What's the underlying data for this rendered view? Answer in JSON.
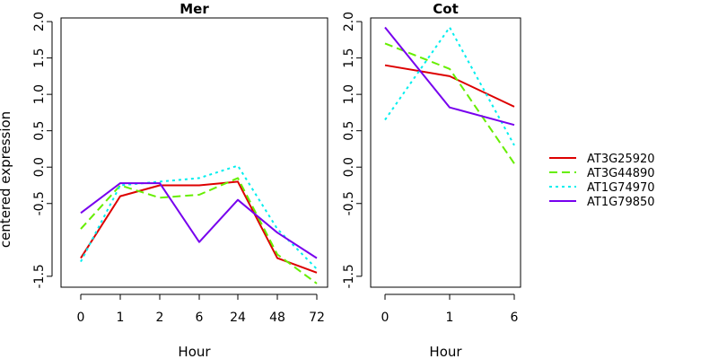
{
  "chart_data": {
    "type": "line",
    "ylabel": "centered expression",
    "ylim": [
      -1.65,
      2.05
    ],
    "yticks": [
      -1.5,
      -0.5,
      0.0,
      0.5,
      1.0,
      1.5,
      2.0
    ],
    "ytick_labels": [
      "-1.5",
      "-0.5",
      "0.0",
      "0.5",
      "1.0",
      "1.5",
      "2.0"
    ],
    "legend_position": "right",
    "panels": [
      {
        "title": "Mer",
        "xlabel": "Hour",
        "categories": [
          "0",
          "1",
          "2",
          "6",
          "24",
          "48",
          "72"
        ],
        "series": [
          {
            "name": "AT3G25920",
            "values": [
              -1.25,
              -0.4,
              -0.25,
              -0.25,
              -0.2,
              -1.25,
              -1.45
            ]
          },
          {
            "name": "AT3G44890",
            "values": [
              -0.85,
              -0.25,
              -0.42,
              -0.38,
              -0.15,
              -1.2,
              -1.6
            ]
          },
          {
            "name": "AT1G74970",
            "values": [
              -1.3,
              -0.25,
              -0.2,
              -0.15,
              0.02,
              -0.85,
              -1.4
            ]
          },
          {
            "name": "AT1G79850",
            "values": [
              -0.63,
              -0.22,
              -0.22,
              -1.03,
              -0.45,
              -0.9,
              -1.25
            ]
          }
        ]
      },
      {
        "title": "Cot",
        "xlabel": "Hour",
        "categories": [
          "0",
          "1",
          "6"
        ],
        "series": [
          {
            "name": "AT3G25920",
            "values": [
              1.4,
              1.25,
              0.83
            ]
          },
          {
            "name": "AT3G44890",
            "values": [
              1.7,
              1.35,
              0.05
            ]
          },
          {
            "name": "AT1G74970",
            "values": [
              0.65,
              1.92,
              0.3
            ]
          },
          {
            "name": "AT1G79850",
            "values": [
              1.92,
              0.82,
              0.58
            ]
          }
        ]
      }
    ]
  },
  "legend": {
    "items": [
      {
        "name": "AT3G25920",
        "color": "#dd0000",
        "dash": "solid"
      },
      {
        "name": "AT3G44890",
        "color": "#66ee00",
        "dash": "dashed"
      },
      {
        "name": "AT1G74970",
        "color": "#00eeee",
        "dash": "dotted"
      },
      {
        "name": "AT1G79850",
        "color": "#7700ee",
        "dash": "solid"
      }
    ]
  }
}
